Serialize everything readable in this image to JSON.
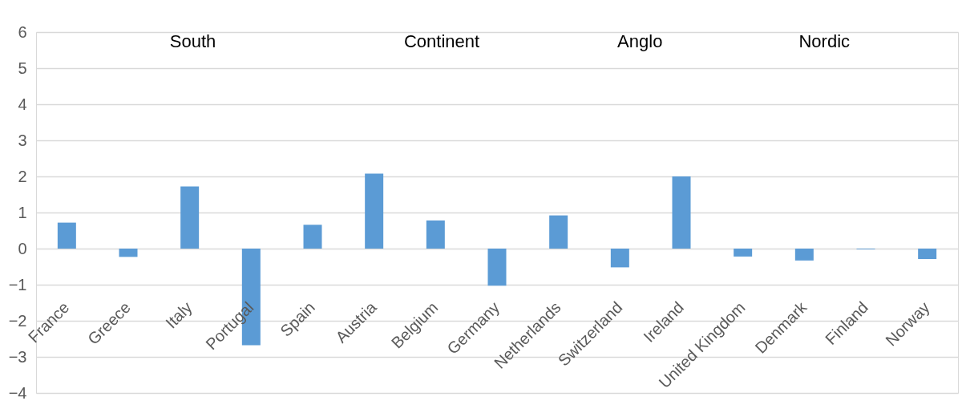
{
  "chart_data": {
    "type": "bar",
    "categories": [
      "France",
      "Greece",
      "Italy",
      "Portugal",
      "Spain",
      "Austria",
      "Belgium",
      "Germany",
      "Netherlands",
      "Switzerland",
      "Ireland",
      "United Kingdom",
      "Denmark",
      "Finland",
      "Norway"
    ],
    "values": [
      0.72,
      -0.23,
      1.72,
      -2.68,
      0.66,
      2.08,
      0.78,
      -1.03,
      0.92,
      -0.52,
      2.0,
      -0.22,
      -0.33,
      -0.02,
      -0.29
    ],
    "color": "#5b9bd5",
    "ylim": [
      -4,
      6
    ],
    "yticks": [
      -4,
      -3,
      -2,
      -1,
      0,
      1,
      2,
      3,
      4,
      5,
      6
    ],
    "grid": "y",
    "annotations": [
      "South",
      "Continent",
      "Anglo",
      "Nordic"
    ]
  }
}
